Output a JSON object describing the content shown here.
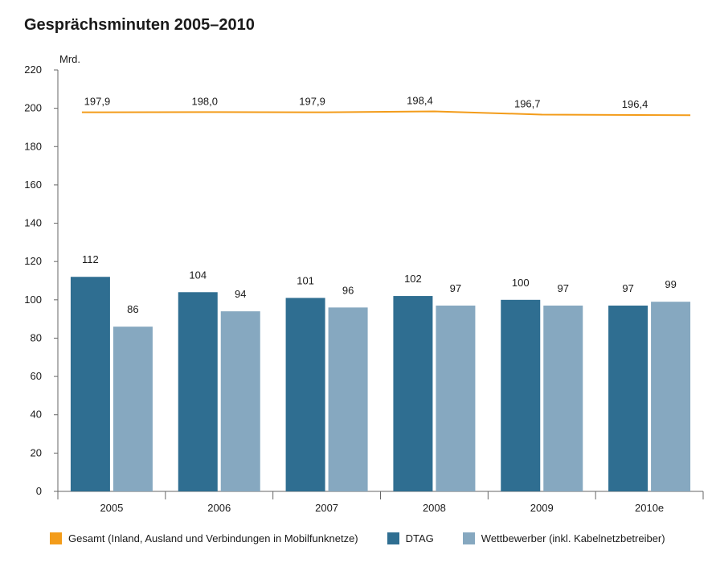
{
  "colors": {
    "total": "#f39c1a",
    "dtag": "#2f6e91",
    "competitors": "#86a8c0"
  },
  "chart_data": {
    "type": "bar",
    "title": "Gesprächsminuten 2005–2010",
    "ylabel": "Mrd.",
    "xlabel": "",
    "ylim": [
      0,
      220
    ],
    "yticks": [
      0,
      20,
      40,
      60,
      80,
      100,
      120,
      140,
      160,
      180,
      200,
      220
    ],
    "categories": [
      "2005",
      "2006",
      "2007",
      "2008",
      "2009",
      "2010e"
    ],
    "series": [
      {
        "name": "DTAG",
        "type": "bar",
        "values": [
          112,
          104,
          101,
          102,
          100,
          97
        ],
        "labels": [
          "112",
          "104",
          "101",
          "102",
          "100",
          "97"
        ]
      },
      {
        "name": "Wettbewerber (inkl. Kabelnetzbetreiber)",
        "type": "bar",
        "values": [
          86,
          94,
          96,
          97,
          97,
          99
        ],
        "labels": [
          "86",
          "94",
          "96",
          "97",
          "97",
          "99"
        ]
      },
      {
        "name": "Gesamt (Inland, Ausland und Verbindungen in Mobilfunknetze)",
        "type": "line",
        "values": [
          197.9,
          198.0,
          197.9,
          198.4,
          196.7,
          196.4
        ],
        "labels": [
          "197,9",
          "198,0",
          "197,9",
          "198,4",
          "196,7",
          "196,4"
        ]
      }
    ],
    "legend": [
      "Gesamt (Inland, Ausland und Verbindungen in Mobilfunknetze)",
      "DTAG",
      "Wettbewerber (inkl. Kabelnetzbetreiber)"
    ],
    "legend_position": "bottom",
    "grid": false
  }
}
